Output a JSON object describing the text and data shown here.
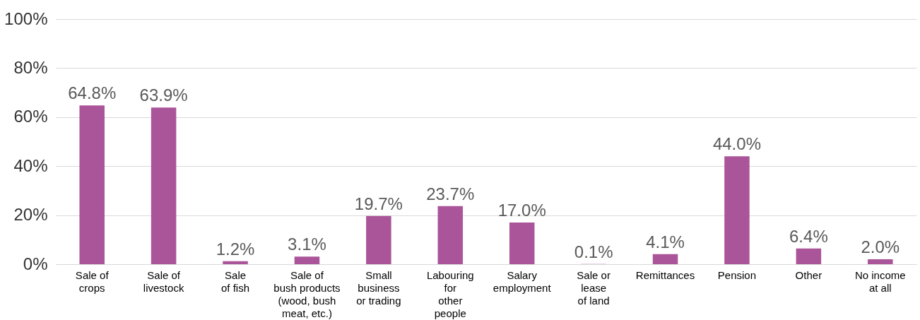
{
  "chart_data": {
    "type": "bar",
    "categories": [
      "Sale of\ncrops",
      "Sale of\nlivestock",
      "Sale\nof fish",
      "Sale of\nbush products\n(wood, bush\nmeat, etc.)",
      "Small\nbusiness\nor trading",
      "Labouring\nfor\nother\npeople",
      "Salary\nemployment",
      "Sale or\nlease\nof land",
      "Remittances",
      "Pension",
      "Other",
      "No income\nat all"
    ],
    "values": [
      64.8,
      63.9,
      1.2,
      3.1,
      19.7,
      23.7,
      17.0,
      0.1,
      4.1,
      44.0,
      6.4,
      2.0
    ],
    "value_labels": [
      "64.8%",
      "63.9%",
      "1.2%",
      "3.1%",
      "19.7%",
      "23.7%",
      "17.0%",
      "0.1%",
      "4.1%",
      "44.0%",
      "6.4%",
      "2.0%"
    ],
    "color": "#aa5499",
    "ylim": [
      0,
      100
    ],
    "yticks": [
      {
        "value": 0,
        "label": "0%"
      },
      {
        "value": 20,
        "label": "20%"
      },
      {
        "value": 40,
        "label": "40%"
      },
      {
        "value": 60,
        "label": "60%"
      },
      {
        "value": 80,
        "label": "80%"
      },
      {
        "value": 100,
        "label": "100%"
      }
    ],
    "grid": "y"
  }
}
